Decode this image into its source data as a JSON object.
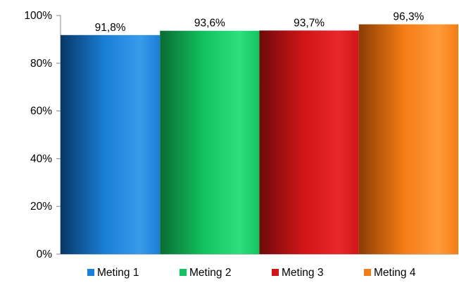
{
  "chart_data": {
    "type": "bar",
    "categories": [
      "Meting 1",
      "Meting 2",
      "Meting 3",
      "Meting 4"
    ],
    "values": [
      91.8,
      93.6,
      93.7,
      96.3
    ],
    "data_labels": [
      "91,8%",
      "93,6%",
      "93,7%",
      "96,3%"
    ],
    "title": "",
    "xlabel": "",
    "ylabel": "",
    "ylim": [
      0,
      100
    ],
    "y_ticks": [
      0,
      20,
      40,
      60,
      80,
      100
    ],
    "y_tick_labels": [
      "0%",
      "20%",
      "40%",
      "60%",
      "80%",
      "100%"
    ],
    "grid": false,
    "legend": {
      "position": "bottom",
      "entries": [
        "Meting 1",
        "Meting 2",
        "Meting 3",
        "Meting 4"
      ]
    },
    "colors": [
      "#1a7fd6",
      "#12c45f",
      "#d11618",
      "#f47c14"
    ],
    "colors_dark": [
      "#083766",
      "#0a6b34",
      "#6e0a0b",
      "#8a3d05"
    ],
    "colors_light": [
      "#3a9bea",
      "#2ee07c",
      "#e8282a",
      "#ff9a3a"
    ]
  }
}
